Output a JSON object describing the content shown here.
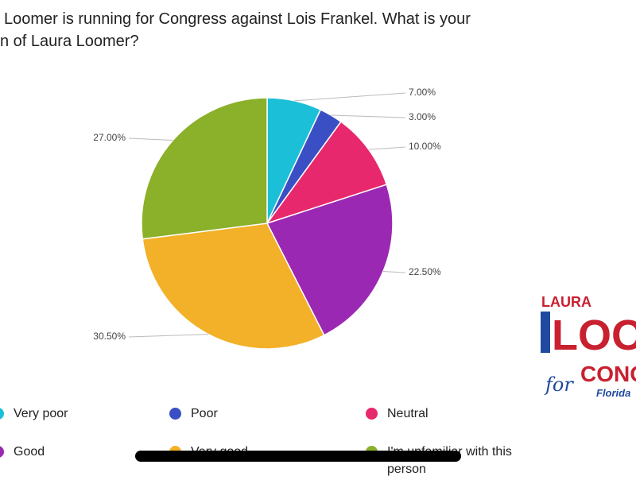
{
  "chart_data": {
    "type": "pie",
    "title_lines": [
      "Loomer is running for Congress against Lois Frankel.  What is your",
      "n of Laura Loomer?"
    ],
    "categories": [
      "Very poor",
      "Poor",
      "Neutral",
      "Good",
      "Very good",
      "I'm unfamiliar with this person"
    ],
    "values": [
      7,
      3,
      10,
      22.5,
      30.5,
      27
    ],
    "value_labels": [
      "7.00%",
      "3.00%",
      "10.00%",
      "22.50%",
      "30.50%",
      "27.00%"
    ],
    "colors": [
      "#1cbfd8",
      "#3a4fc4",
      "#e8286c",
      "#9b28b2",
      "#f2b128",
      "#8bb02a"
    ]
  },
  "logo": {
    "line1": "LAURA",
    "line2": "LOOM",
    "line3": "for",
    "line4": "CONG",
    "line5": "Florida"
  }
}
